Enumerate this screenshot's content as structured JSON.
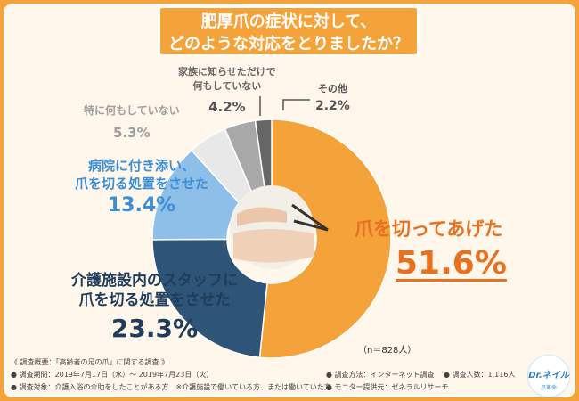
{
  "title": {
    "line1": "肥厚爪の症状に対して、",
    "line2": "どのような対応をとりましたか？"
  },
  "chart_data": {
    "type": "pie",
    "chart_kind": "donut",
    "sample_note": "（n＝828人）",
    "slices": [
      {
        "name": "爪を切ってあげた",
        "value": 51.6,
        "label": "51.6%",
        "color": "#f4a23a"
      },
      {
        "name": "介護施設内のスタッフに爪を切る処置をさせた",
        "value": 23.3,
        "label": "23.3%",
        "color": "#2e5577"
      },
      {
        "name": "病院に付き添い、爪を切る処置をさせた",
        "value": 13.4,
        "label": "13.4%",
        "color": "#8dbfe8"
      },
      {
        "name": "特に何もしていない",
        "value": 5.3,
        "label": "5.3%",
        "color": "#e8e8e8"
      },
      {
        "name": "家族に知らせただけで何もしていない",
        "value": 4.2,
        "label": "4.2%",
        "color": "#a8a8a8"
      },
      {
        "name": "その他",
        "value": 2.2,
        "label": "2.2%",
        "color": "#666666"
      }
    ]
  },
  "labels": {
    "orange_name": "爪を切ってあげた",
    "orange_pct": "51.6%",
    "navy_name1": "介護施設内のスタッフに",
    "navy_name2": "爪を切る処置をさせた",
    "navy_pct": "23.3%",
    "blue_name1": "病院に付き添い、",
    "blue_name2": "爪を切る処置をさせた",
    "blue_pct": "13.4%",
    "grey1_name": "特に何もしていない",
    "grey1_pct": "5.3%",
    "grey2_name1": "家族に知らせただけで",
    "grey2_name2": "何もしていない",
    "grey2_pct": "4.2%",
    "other_name": "その他",
    "other_pct": "2.2%"
  },
  "footer": {
    "summary": "《 調査概要：「高齢者の足の爪」に関する調査 》",
    "period": "● 調査期間：2019年7月17日（水）～ 2019年7月23日（火）",
    "target": "● 調査対象：介護入浴の介助をしたことがある方　※介護施設で働いている方、または働いていた方",
    "method": "● 調査方法：インターネット調査",
    "people": "● 調査人数：1,116人",
    "monitor": "● モニター提供元：ゼネラルリサーチ"
  },
  "logo": {
    "main": "Dr.ネイル",
    "sub": "爪革命"
  },
  "colors": {
    "background": "#f4a23a",
    "panel": "#fff7ec"
  }
}
